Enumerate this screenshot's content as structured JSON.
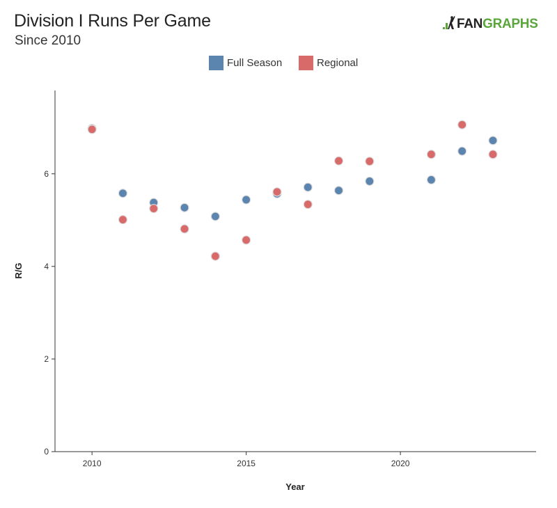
{
  "header": {
    "title": "Division I Runs Per Game",
    "subtitle": "Since 2010",
    "logo_text_a": "FAN",
    "logo_text_b": "GRAPHS"
  },
  "colors": {
    "full_season": "#5b84ae",
    "regional": "#d96a6a",
    "axis": "#333333",
    "logo_green": "#5aa63d"
  },
  "chart_data": {
    "type": "scatter",
    "title": "Division I Runs Per Game",
    "subtitle": "Since 2010",
    "xlabel": "Year",
    "ylabel": "R/G",
    "xlim": [
      2008.8,
      2024.4
    ],
    "ylim": [
      0,
      7.8
    ],
    "x_ticks": [
      2010,
      2015,
      2020
    ],
    "y_ticks": [
      0,
      2,
      4,
      6
    ],
    "grid": false,
    "legend_position": "top-center",
    "series": [
      {
        "name": "Full Season",
        "color": "#5b84ae",
        "x": [
          2010,
          2011,
          2012,
          2013,
          2014,
          2015,
          2016,
          2017,
          2018,
          2019,
          2021,
          2022,
          2023
        ],
        "y": [
          6.98,
          5.58,
          5.38,
          5.27,
          5.08,
          5.44,
          5.57,
          5.71,
          5.64,
          5.84,
          5.87,
          6.49,
          6.72
        ]
      },
      {
        "name": "Regional",
        "color": "#d96a6a",
        "x": [
          2010,
          2011,
          2012,
          2013,
          2014,
          2015,
          2016,
          2017,
          2018,
          2019,
          2021,
          2022,
          2023
        ],
        "y": [
          6.96,
          5.01,
          5.25,
          4.81,
          4.22,
          4.57,
          5.61,
          5.34,
          6.28,
          6.27,
          6.42,
          7.06,
          6.42
        ]
      }
    ]
  }
}
